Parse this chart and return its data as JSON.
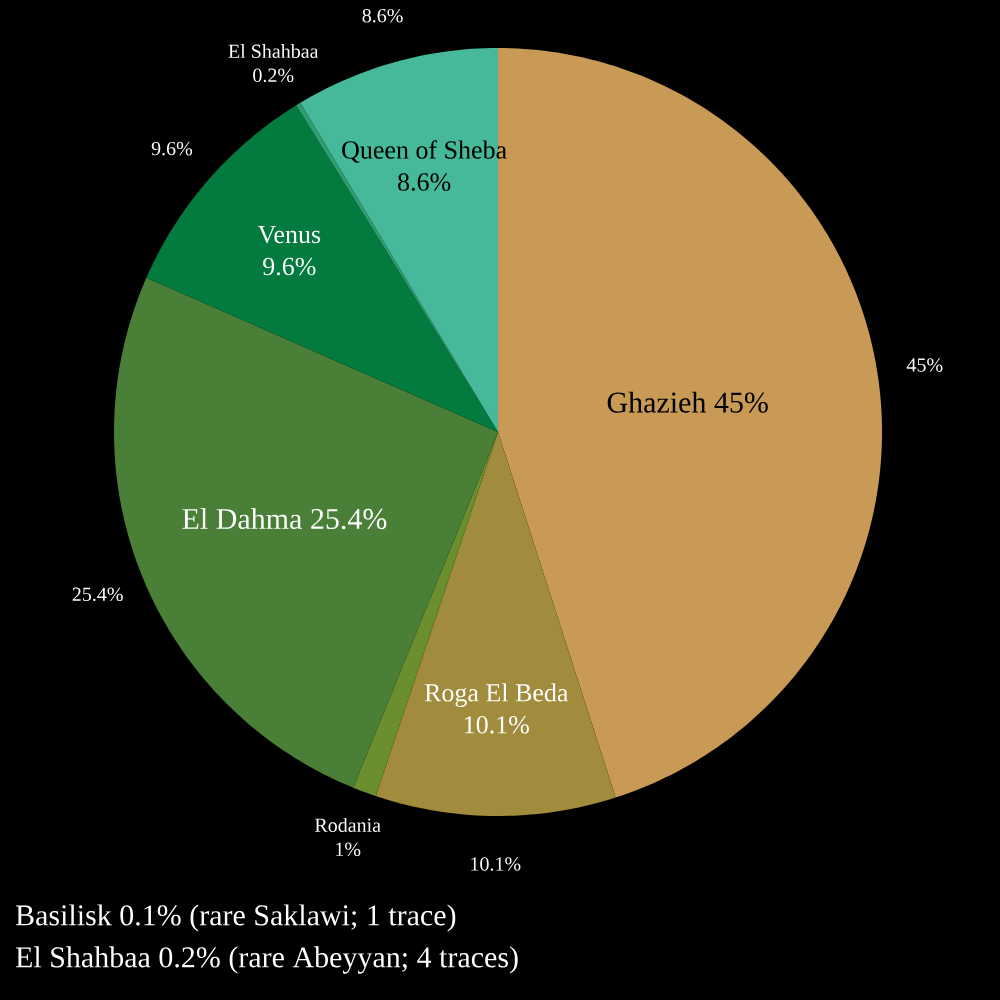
{
  "chart_data": {
    "type": "pie",
    "categories": [
      "Ghazieh",
      "Roga El Beda",
      "Rodania",
      "El Dahma",
      "Venus",
      "El Shahbaa",
      "Queen of Sheba"
    ],
    "values": [
      45,
      10.1,
      1,
      25.4,
      9.6,
      0.2,
      8.6
    ],
    "value_labels": [
      "45%",
      "10.1%",
      "1%",
      "25.4%",
      "9.6%",
      "0.2%",
      "8.6%"
    ],
    "colors": [
      "#c99a55",
      "#a08c3c",
      "#6b8e2e",
      "#4a7f37",
      "#037a3e",
      "#2e9e6e",
      "#45b99a"
    ],
    "annotations": [
      "Basilisk 0.1% (rare Saklawi; 1 trace)",
      "El Shahbaa 0.2% (rare Abeyyan; 4 traces)"
    ]
  }
}
